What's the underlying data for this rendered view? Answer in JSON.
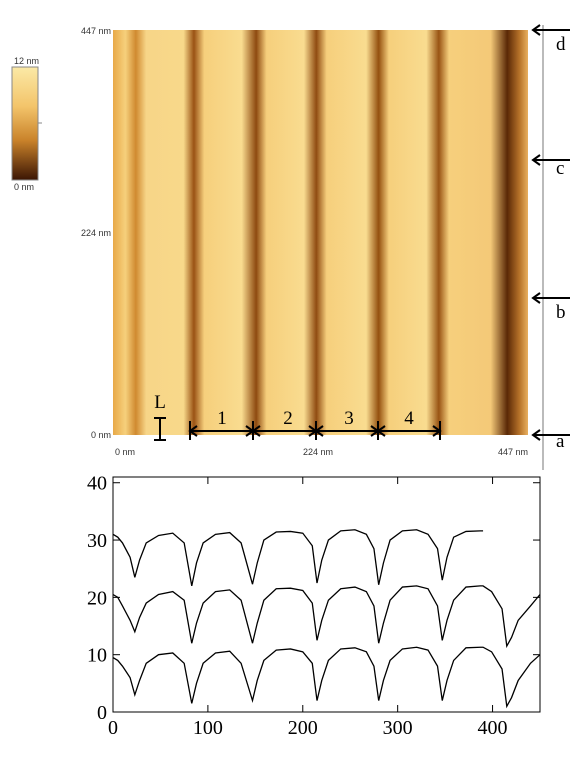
{
  "afm_image": {
    "colorbar_labels": [
      "12 nm",
      "0 nm"
    ],
    "y_labels": [
      "447 nm",
      "224 nm",
      "0 nm"
    ],
    "x_labels": [
      "0 nm",
      "224 nm",
      "447 nm"
    ],
    "scale_label": "L",
    "segment_labels": [
      "1",
      "2",
      "3",
      "4"
    ],
    "arrow_labels": [
      "d",
      "c",
      "b",
      "a"
    ]
  },
  "chart_data": {
    "type": "line",
    "x": [
      0,
      5,
      10,
      18,
      23,
      28,
      35,
      48,
      63,
      75,
      83,
      88,
      95,
      108,
      123,
      135,
      147,
      152,
      159,
      172,
      187,
      200,
      210,
      215,
      220,
      227,
      240,
      255,
      267,
      275,
      280,
      285,
      292,
      305,
      320,
      332,
      342,
      347,
      352,
      359,
      372,
      387,
      390,
      399,
      410,
      415,
      420,
      427,
      440,
      450
    ],
    "series": [
      {
        "color": "#000000",
        "values": [
          31,
          30.5,
          29.5,
          27,
          23.5,
          26.5,
          29.5,
          30.8,
          31.2,
          29.5,
          22,
          26,
          29.5,
          31,
          31.3,
          29.5,
          22.3,
          26,
          30,
          31.4,
          31.5,
          31.2,
          29,
          22.5,
          26.5,
          30,
          31.6,
          31.8,
          31,
          28.5,
          22.2,
          26,
          30,
          31.6,
          31.8,
          31,
          28.5,
          23,
          27,
          30.5,
          31.5,
          31.6,
          31.6,
          null,
          null,
          null,
          null,
          null,
          null,
          null
        ]
      },
      {
        "color": "#000000",
        "values": [
          20.5,
          20,
          18.5,
          16,
          14,
          16.5,
          19,
          20.5,
          21,
          19.5,
          12,
          15.5,
          19,
          21,
          21.3,
          19.5,
          12,
          15.5,
          19.5,
          21.5,
          21.6,
          21.2,
          19,
          12.5,
          16,
          19.5,
          21.5,
          21.8,
          21,
          18.5,
          12,
          15.5,
          19.5,
          21.8,
          22,
          21.5,
          18.5,
          12.5,
          16,
          19.5,
          21.8,
          22,
          22,
          21,
          18,
          11.5,
          13,
          16,
          18.5,
          20.5
        ]
      },
      {
        "color": "#000000",
        "values": [
          9.5,
          9,
          8,
          6,
          3,
          5.5,
          8.5,
          10,
          10.3,
          8.5,
          1.5,
          5,
          8.5,
          10.3,
          10.6,
          8.5,
          2,
          5.5,
          9,
          10.8,
          11,
          10.5,
          8.5,
          2,
          5.5,
          9,
          11,
          11.2,
          10.5,
          8,
          2,
          5.5,
          9,
          11,
          11.3,
          10.8,
          8,
          2,
          5.5,
          9,
          11.2,
          11.3,
          11.3,
          10.5,
          7.5,
          1,
          2.5,
          5.5,
          8.5,
          10
        ]
      }
    ],
    "xlim": [
      0,
      450
    ],
    "xticks": [
      0,
      100,
      200,
      300,
      400
    ],
    "ylim": [
      0,
      41
    ],
    "yticks": [
      0,
      10,
      20,
      30,
      40
    ]
  }
}
